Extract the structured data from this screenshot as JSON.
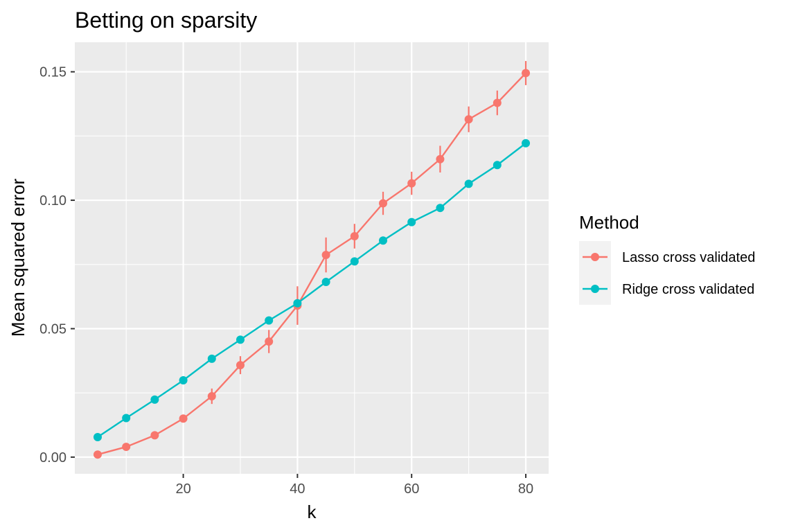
{
  "chart_data": {
    "type": "line",
    "title": "Betting on sparsity",
    "xlabel": "k",
    "ylabel": "Mean squared error",
    "xlim": [
      1,
      84
    ],
    "ylim": [
      -0.0065,
      0.1615
    ],
    "x_ticks": [
      20,
      40,
      60,
      80
    ],
    "y_ticks": [
      0.0,
      0.05,
      0.1,
      0.15
    ],
    "x_tick_labels": [
      "20",
      "40",
      "60",
      "80"
    ],
    "y_tick_labels": [
      "0.00",
      "0.05",
      "0.10",
      "0.15"
    ],
    "grid": true,
    "legend": {
      "title": "Method",
      "position": "right"
    },
    "x": [
      5,
      10,
      15,
      20,
      25,
      30,
      35,
      40,
      45,
      50,
      55,
      60,
      65,
      70,
      75,
      80
    ],
    "series": [
      {
        "name": "Lasso cross validated",
        "color": "#F8766D",
        "values": [
          0.001,
          0.004,
          0.0085,
          0.015,
          0.0237,
          0.0358,
          0.045,
          0.059,
          0.0787,
          0.086,
          0.0988,
          0.1066,
          0.116,
          0.1315,
          0.1379,
          0.1495
        ],
        "error": [
          0.0006,
          0.0008,
          0.001,
          0.0012,
          0.003,
          0.0035,
          0.0045,
          0.0075,
          0.0068,
          0.0048,
          0.0045,
          0.0045,
          0.0052,
          0.005,
          0.0048,
          0.0047
        ]
      },
      {
        "name": "Ridge cross validated",
        "color": "#00BFC4",
        "values": [
          0.0078,
          0.0152,
          0.0224,
          0.0299,
          0.0383,
          0.0457,
          0.0532,
          0.0599,
          0.0682,
          0.0762,
          0.0843,
          0.0915,
          0.097,
          0.1064,
          0.1137,
          0.1222
        ],
        "error": [
          0.0004,
          0.0004,
          0.0004,
          0.0004,
          0.0004,
          0.0004,
          0.0004,
          0.0004,
          0.0004,
          0.0004,
          0.0004,
          0.0004,
          0.0004,
          0.0004,
          0.0004,
          0.0004
        ]
      }
    ]
  }
}
